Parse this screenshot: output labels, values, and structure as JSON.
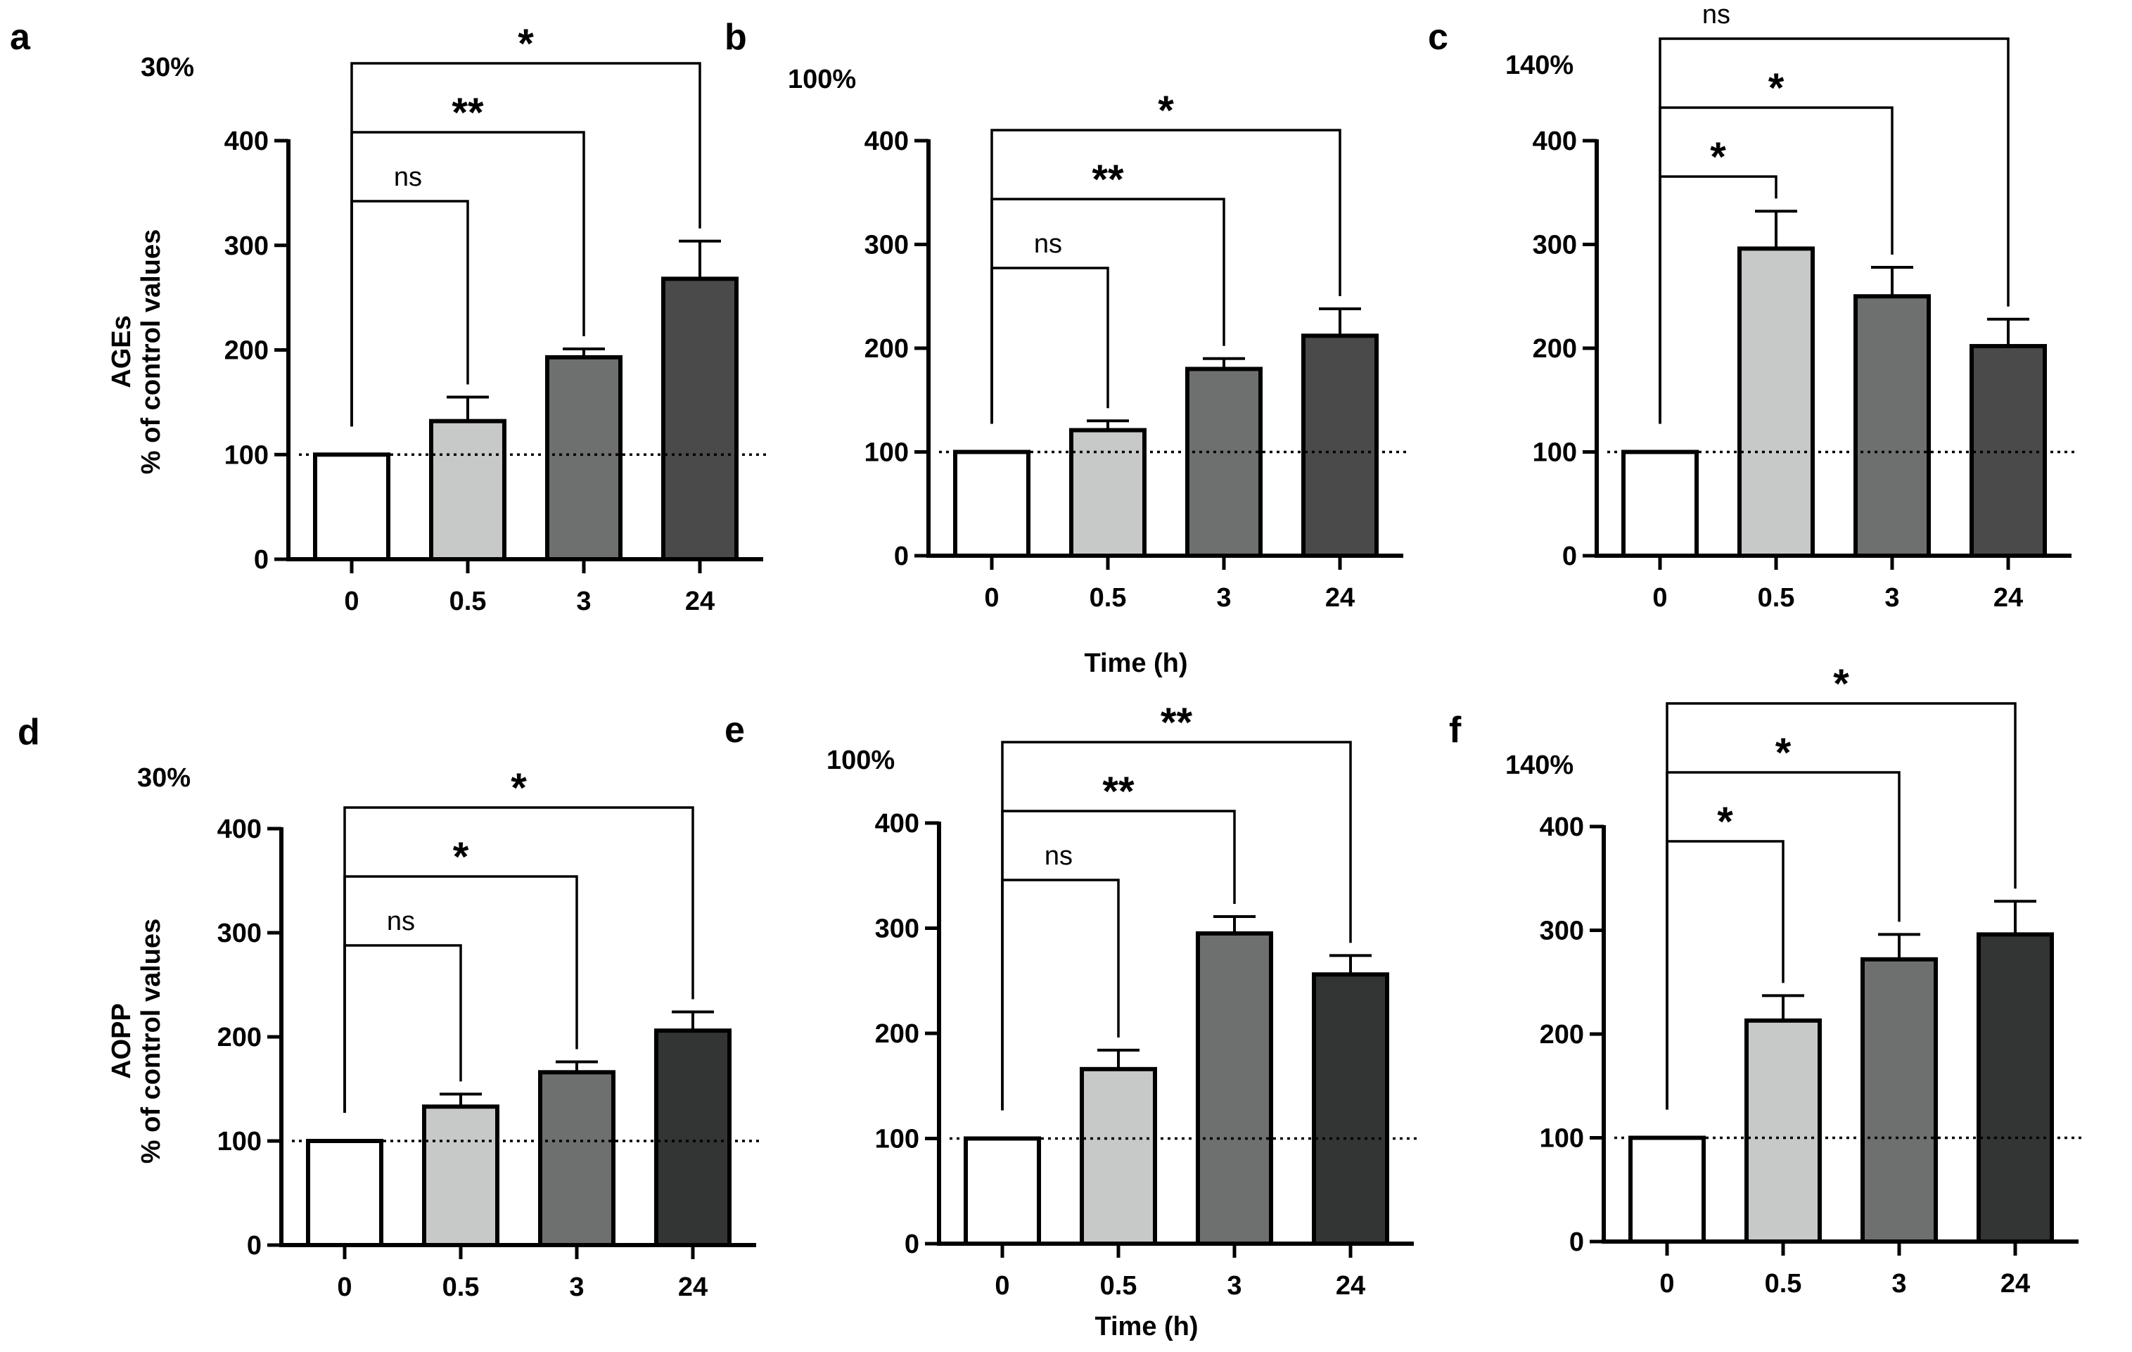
{
  "colors": {
    "bars": [
      "#ffffff",
      "#c6c9c8",
      "#6e706f",
      "#4a4a4a"
    ],
    "bars_dark": [
      "#ffffff",
      "#c6c9c8",
      "#6e706f",
      "#333535"
    ],
    "axis": "#000000"
  },
  "chart_data": [
    {
      "panel": "a",
      "type": "bar",
      "percent_label": "30%",
      "ylabel_main": "AGEs",
      "ylabel_sub": "% of control values",
      "xlabel": "",
      "categories": [
        "0",
        "0.5",
        "3",
        "24"
      ],
      "values": [
        100,
        132,
        193,
        268
      ],
      "errors": [
        0,
        23,
        8,
        36
      ],
      "ylim": [
        0,
        400
      ],
      "yticks": [
        0,
        100,
        200,
        300,
        400
      ],
      "reference_line": 100,
      "comparisons": [
        {
          "from": "0",
          "to": "0.5",
          "label": "ns"
        },
        {
          "from": "0",
          "to": "3",
          "label": "**"
        },
        {
          "from": "0",
          "to": "24",
          "label": "*"
        }
      ]
    },
    {
      "panel": "b",
      "type": "bar",
      "percent_label": "100%",
      "ylabel_main": "",
      "ylabel_sub": "",
      "xlabel": "Time (h)",
      "categories": [
        "0",
        "0.5",
        "3",
        "24"
      ],
      "values": [
        100,
        121,
        180,
        212
      ],
      "errors": [
        0,
        9,
        10,
        26
      ],
      "ylim": [
        0,
        400
      ],
      "yticks": [
        0,
        100,
        200,
        300,
        400
      ],
      "reference_line": 100,
      "comparisons": [
        {
          "from": "0",
          "to": "0.5",
          "label": "ns"
        },
        {
          "from": "0",
          "to": "3",
          "label": "**"
        },
        {
          "from": "0",
          "to": "24",
          "label": "*"
        }
      ]
    },
    {
      "panel": "c",
      "type": "bar",
      "percent_label": "140%",
      "ylabel_main": "",
      "ylabel_sub": "",
      "xlabel": "",
      "categories": [
        "0",
        "0.5",
        "3",
        "24"
      ],
      "values": [
        100,
        296,
        250,
        202
      ],
      "errors": [
        0,
        36,
        28,
        26
      ],
      "ylim": [
        0,
        400
      ],
      "yticks": [
        0,
        100,
        200,
        300,
        400
      ],
      "reference_line": 100,
      "comparisons": [
        {
          "from": "0",
          "to": "0.5",
          "label": "*"
        },
        {
          "from": "0",
          "to": "3",
          "label": "*"
        },
        {
          "from": "0",
          "to": "24",
          "label": "ns"
        }
      ]
    },
    {
      "panel": "d",
      "type": "bar",
      "percent_label": "30%",
      "ylabel_main": "AOPP",
      "ylabel_sub": "% of control values",
      "xlabel": "",
      "categories": [
        "0",
        "0.5",
        "3",
        "24"
      ],
      "values": [
        100,
        133,
        166,
        206
      ],
      "errors": [
        0,
        12,
        10,
        18
      ],
      "ylim": [
        0,
        400
      ],
      "yticks": [
        0,
        100,
        200,
        300,
        400
      ],
      "reference_line": 100,
      "comparisons": [
        {
          "from": "0",
          "to": "0.5",
          "label": "ns"
        },
        {
          "from": "0",
          "to": "3",
          "label": "*"
        },
        {
          "from": "0",
          "to": "24",
          "label": "*"
        }
      ]
    },
    {
      "panel": "e",
      "type": "bar",
      "percent_label": "100%",
      "ylabel_main": "",
      "ylabel_sub": "",
      "xlabel": "Time (h)",
      "categories": [
        "0",
        "0.5",
        "3",
        "24"
      ],
      "values": [
        100,
        166,
        295,
        256
      ],
      "errors": [
        0,
        18,
        16,
        18
      ],
      "ylim": [
        0,
        400
      ],
      "yticks": [
        0,
        100,
        200,
        300,
        400
      ],
      "reference_line": 100,
      "comparisons": [
        {
          "from": "0",
          "to": "0.5",
          "label": "ns"
        },
        {
          "from": "0",
          "to": "3",
          "label": "**"
        },
        {
          "from": "0",
          "to": "24",
          "label": "**"
        }
      ]
    },
    {
      "panel": "f",
      "type": "bar",
      "percent_label": "140%",
      "ylabel_main": "",
      "ylabel_sub": "",
      "xlabel": "",
      "categories": [
        "0",
        "0.5",
        "3",
        "24"
      ],
      "values": [
        100,
        213,
        272,
        296
      ],
      "errors": [
        0,
        24,
        24,
        32
      ],
      "ylim": [
        0,
        400
      ],
      "yticks": [
        0,
        100,
        200,
        300,
        400
      ],
      "reference_line": 100,
      "comparisons": [
        {
          "from": "0",
          "to": "0.5",
          "label": "*"
        },
        {
          "from": "0",
          "to": "3",
          "label": "*"
        },
        {
          "from": "0",
          "to": "24",
          "label": "*"
        }
      ]
    }
  ]
}
